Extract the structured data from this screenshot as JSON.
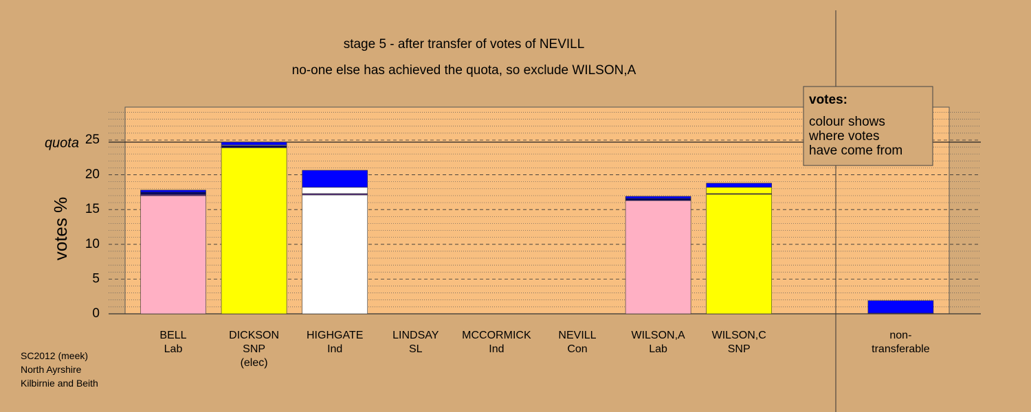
{
  "chart_data": {
    "type": "stacked_bar",
    "title": "stage 5 - after transfer of votes of NEVILL",
    "subtitle": "no-one else has achieved the quota, so exclude WILSON,A",
    "y_label": "votes %",
    "categories": [
      "BELL\nLab",
      "DICKSON\nSNP\n(elec)",
      "HIGHGATE\nInd",
      "LINDSAY\nSL",
      "MCCORMICK\nInd",
      "NEVILL\nCon",
      "WILSON,A\nLab",
      "WILSON,C\nSNP",
      null,
      "non-\ntransferable"
    ],
    "series": [
      {
        "color": "#ffb0c4",
        "values": [
          17.0,
          0,
          0,
          0,
          0,
          0,
          16.3,
          0,
          null,
          0
        ]
      },
      {
        "color": "#ffff00",
        "values": [
          0,
          23.9,
          0,
          0,
          0,
          0,
          0,
          17.2,
          null,
          0
        ]
      },
      {
        "color": "#ffffff",
        "values": [
          0,
          0,
          17.1,
          0,
          0,
          0,
          0,
          0,
          null,
          0
        ]
      },
      {
        "color": "#5a2a8a",
        "values": [
          0.2,
          0,
          0.2,
          0,
          0,
          0,
          0,
          0.1,
          null,
          0.1
        ]
      },
      {
        "color": "#000066",
        "values": [
          0.3,
          0.3,
          0,
          0,
          0,
          0,
          0.3,
          0,
          null,
          0
        ]
      },
      {
        "color": "#ffffff",
        "values": [
          0,
          0.1,
          0.9,
          0,
          0,
          0,
          0,
          0,
          null,
          0
        ]
      },
      {
        "color": "#ffff00",
        "values": [
          0,
          0,
          0,
          0,
          0,
          0,
          0,
          0.9,
          null,
          0
        ]
      },
      {
        "color": "#0000ff",
        "values": [
          0.3,
          0.4,
          2.45,
          0,
          0,
          0,
          0.3,
          0.6,
          null,
          1.8
        ]
      }
    ],
    "ylim": [
      0,
      29.7
    ],
    "yticks": [
      0,
      5,
      10,
      15,
      20,
      25
    ],
    "minor_yticks": [
      1,
      2,
      3,
      4,
      6,
      7,
      8,
      9,
      11,
      12,
      13,
      14,
      16,
      17,
      18,
      19,
      21,
      22,
      23,
      24,
      26,
      27,
      28,
      29
    ],
    "quota": {
      "value": 24.7,
      "label": "quota"
    },
    "grid": true,
    "legend_box": {
      "title": "votes:",
      "lines": [
        "colour shows",
        "where votes",
        "have come from"
      ]
    },
    "footnote": [
      "SC2012 (meek)",
      "North Ayrshire",
      "Kilbirnie and Beith"
    ]
  }
}
